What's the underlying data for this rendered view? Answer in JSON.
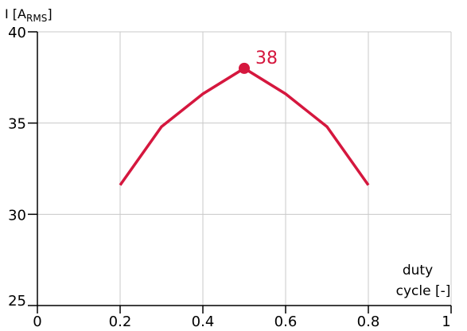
{
  "chart_data": {
    "type": "line",
    "ylabel": {
      "main": "I [A",
      "sub": "RMS",
      "close": "]"
    },
    "xlabel": {
      "line1": "duty",
      "line2": "cycle [-]"
    },
    "xlim": [
      0,
      1
    ],
    "ylim": [
      25,
      40
    ],
    "x_ticks": [
      0,
      0.2,
      0.4,
      0.6,
      0.8,
      1
    ],
    "x_tick_labels": [
      "0",
      "0.2",
      "0.4",
      "0.6",
      "0.8",
      "1"
    ],
    "y_ticks": [
      25,
      30,
      35,
      40
    ],
    "y_tick_labels": [
      "25",
      "30",
      "35",
      "40"
    ],
    "grid": true,
    "series": [
      {
        "color": "#d5173e",
        "x": [
          0.2,
          0.3,
          0.4,
          0.5,
          0.6,
          0.7,
          0.8
        ],
        "y": [
          31.6,
          34.8,
          36.6,
          38.0,
          36.6,
          34.8,
          31.6
        ]
      }
    ],
    "highlight": {
      "x": 0.5,
      "y": 38,
      "label": "38",
      "color": "#d5173e"
    }
  }
}
